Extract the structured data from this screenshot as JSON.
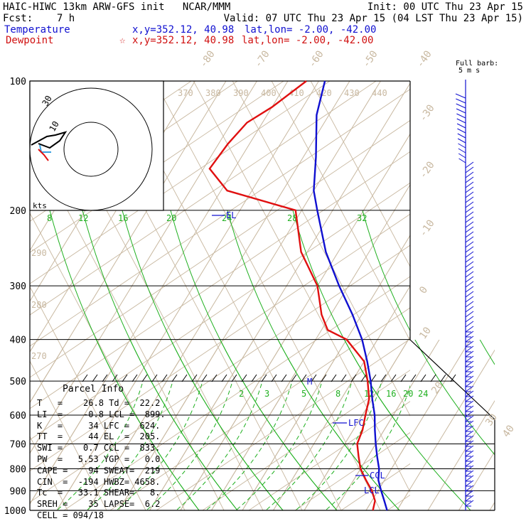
{
  "header": {
    "title": "HAIC-HIWC 13km ARW-GFS init   NCAR/MMM",
    "init": "Init: 00 UTC Thu 23 Apr 15",
    "fcst": "Fcst:    7 h",
    "valid": "Valid: 07 UTC Thu 23 Apr 15 (04 LST Thu 23 Apr 15)",
    "temp_label": "Temperature",
    "temp_xy": "x,y=352.12, 40.98",
    "temp_latlon": "lat,lon= -2.00, -42.00",
    "dew_label": "Dewpoint",
    "dew_xy": "x,y=352.12, 40.98",
    "dew_latlon": "lat,lon= -2.00, -42.00"
  },
  "colors": {
    "temperature": "#1010d0",
    "dewpoint": "#e01010",
    "mixing_ratio": "#20b020",
    "isotherm": "#c8b8a0",
    "grid": "#000000"
  },
  "legend": {
    "barb_title": "Full barb:",
    "barb_unit": "5 m s"
  },
  "hodograph": {
    "unit_label": "kts",
    "ring_labels": [
      "10",
      "30"
    ]
  },
  "parcel_info": {
    "title": "Parcel Info",
    "rows": [
      "T   =    26.8 Td =  22.2",
      "LI  =    -0.8 LCL =  899.",
      "K   =     34 LFC =  624.",
      "TT  =     44 EL  =  205.",
      "SWI =    0.7 CCL =  833.",
      "PW  =   5.53 YGP =   0.0",
      "CAPE =    94 SWEAT=  219",
      "CIN  =  -194 HWBZ= 4658.",
      "Tc  =   33.1 SHEAR=   8.",
      "SREH =    35 LAPSE=  6.2",
      "CELL = 094/18"
    ]
  },
  "levels": {
    "el": "EL",
    "lfc": "LFC",
    "ccl": "CCL",
    "lcl": "LCL",
    "freezing_marker": "M"
  },
  "chart_data": {
    "type": "line",
    "subtype": "skew-T log-P sounding",
    "y_axis": "pressure (hPa), logarithmic, inverted",
    "ylim": [
      1000,
      100
    ],
    "pressure_ticks": [
      100,
      200,
      300,
      400,
      500,
      600,
      700,
      800,
      900,
      1000
    ],
    "isotherm_labels": [
      "-80",
      "-70",
      "-60",
      "-50",
      "-40",
      "-30",
      "-20",
      "-10",
      "0",
      "10",
      "20",
      "30",
      "40"
    ],
    "theta_labels": [
      "370",
      "380",
      "390",
      "400",
      "410",
      "420",
      "430",
      "440"
    ],
    "theta_side_labels": [
      "290",
      "280",
      "270"
    ],
    "mixing_ratio_upper": [
      "8",
      "12",
      "16",
      "20",
      "24",
      "28",
      "32"
    ],
    "mixing_ratio_lower": [
      "2",
      "3",
      "5",
      "8",
      "12",
      "16",
      "20",
      "24"
    ],
    "series": [
      {
        "name": "Temperature",
        "points": [
          [
            100,
            -78
          ],
          [
            120,
            -74
          ],
          [
            150,
            -66
          ],
          [
            180,
            -60
          ],
          [
            200,
            -55
          ],
          [
            250,
            -44
          ],
          [
            300,
            -33
          ],
          [
            350,
            -23
          ],
          [
            400,
            -15
          ],
          [
            450,
            -9
          ],
          [
            500,
            -4
          ],
          [
            550,
            0
          ],
          [
            600,
            4
          ],
          [
            650,
            7
          ],
          [
            700,
            10
          ],
          [
            750,
            13
          ],
          [
            800,
            16
          ],
          [
            850,
            18
          ],
          [
            900,
            21
          ],
          [
            950,
            24
          ],
          [
            1000,
            26.8
          ]
        ]
      },
      {
        "name": "Dewpoint",
        "points": [
          [
            100,
            -84
          ],
          [
            115,
            -90
          ],
          [
            125,
            -95
          ],
          [
            140,
            -97
          ],
          [
            160,
            -98
          ],
          [
            180,
            -88
          ],
          [
            200,
            -62
          ],
          [
            250,
            -52
          ],
          [
            300,
            -40
          ],
          [
            350,
            -33
          ],
          [
            380,
            -28
          ],
          [
            400,
            -20
          ],
          [
            450,
            -10
          ],
          [
            500,
            -5
          ],
          [
            550,
            -1
          ],
          [
            600,
            1
          ],
          [
            650,
            3
          ],
          [
            700,
            4
          ],
          [
            750,
            7
          ],
          [
            800,
            10
          ],
          [
            850,
            14
          ],
          [
            900,
            18
          ],
          [
            950,
            21
          ],
          [
            1000,
            22.2
          ]
        ]
      }
    ]
  }
}
